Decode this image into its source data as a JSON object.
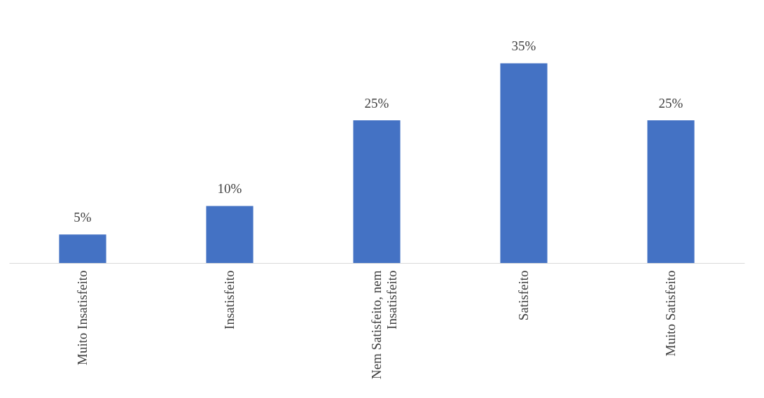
{
  "chart_data": {
    "type": "bar",
    "categories": [
      "Muito Insatisfeito",
      "Insatisfeito",
      "Nem Satisfeito, nem Insatisfeito",
      "Satisfeito",
      "Muito Satisfeito"
    ],
    "values": [
      5,
      10,
      25,
      35,
      25
    ],
    "value_labels": [
      "5%",
      "10%",
      "25%",
      "35%",
      "25%"
    ],
    "color": "#4472c4"
  }
}
